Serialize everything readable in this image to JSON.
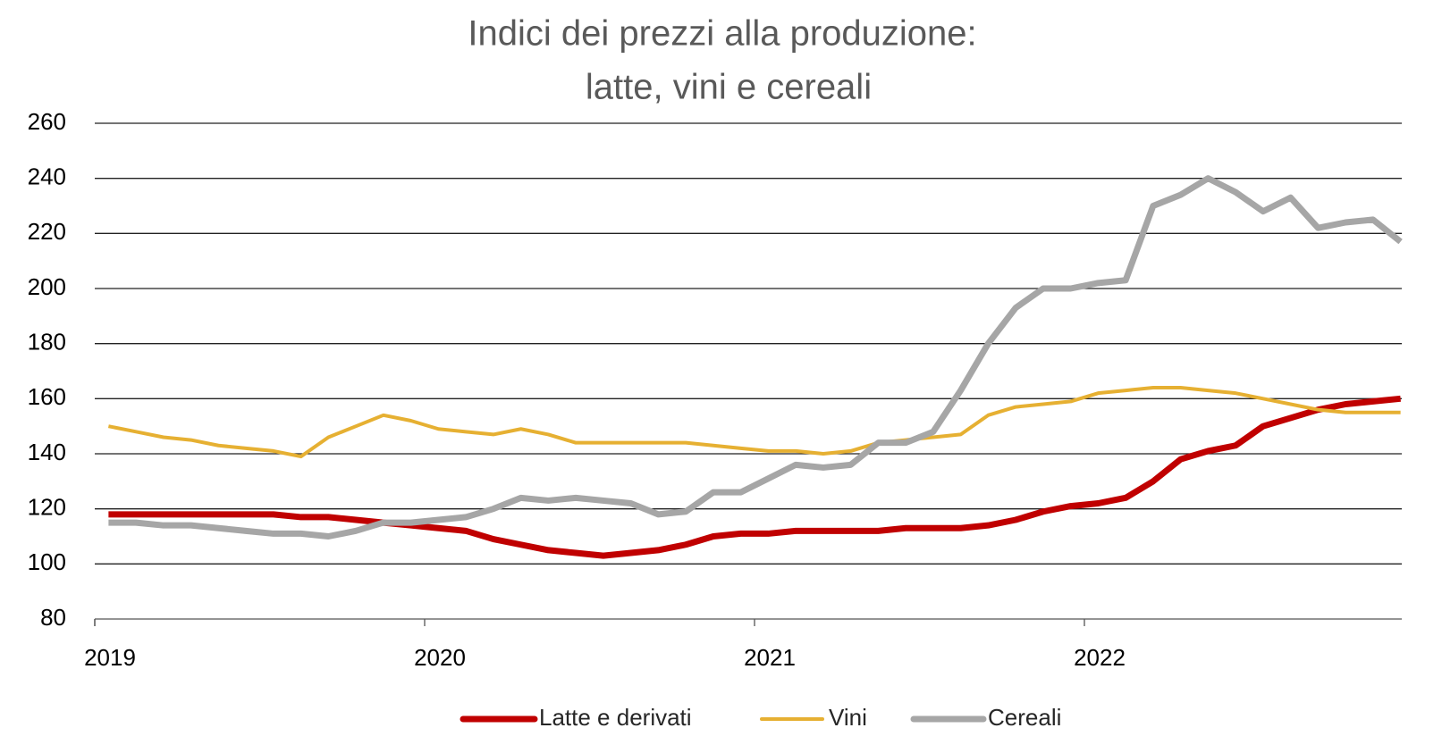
{
  "chart_data": {
    "type": "line",
    "title": [
      "Indici dei prezzi alla produzione:",
      "latte, vini e cereali"
    ],
    "categories": [
      "2019",
      null,
      null,
      null,
      null,
      null,
      null,
      null,
      null,
      null,
      null,
      null,
      "2020",
      null,
      null,
      null,
      null,
      null,
      null,
      null,
      null,
      null,
      null,
      null,
      "2021",
      null,
      null,
      null,
      null,
      null,
      null,
      null,
      null,
      null,
      null,
      null,
      "2022",
      null,
      null,
      null,
      null,
      null,
      null,
      null,
      null,
      null,
      null,
      null
    ],
    "series": [
      {
        "name": "Latte e derivati",
        "color": "#c00000",
        "values": [
          118,
          118,
          118,
          118,
          118,
          118,
          118,
          117,
          117,
          116,
          115,
          114,
          113,
          112,
          109,
          107,
          105,
          104,
          103,
          104,
          105,
          107,
          110,
          111,
          111,
          112,
          112,
          112,
          112,
          113,
          113,
          113,
          114,
          116,
          119,
          121,
          122,
          124,
          130,
          138,
          141,
          143,
          150,
          153,
          156,
          158,
          159,
          160
        ]
      },
      {
        "name": "Vini",
        "color": "#e6b032",
        "values": [
          150,
          148,
          146,
          145,
          143,
          142,
          141,
          139,
          146,
          150,
          154,
          152,
          149,
          148,
          147,
          149,
          147,
          144,
          144,
          144,
          144,
          144,
          143,
          142,
          141,
          141,
          140,
          141,
          144,
          145,
          146,
          147,
          154,
          157,
          158,
          159,
          162,
          163,
          164,
          164,
          163,
          162,
          160,
          158,
          156,
          155,
          155,
          155
        ]
      },
      {
        "name": "Cereali",
        "color": "#a6a6a6",
        "values": [
          115,
          115,
          114,
          114,
          113,
          112,
          111,
          111,
          110,
          112,
          115,
          115,
          116,
          117,
          120,
          124,
          123,
          124,
          123,
          122,
          118,
          119,
          126,
          126,
          131,
          136,
          135,
          136,
          144,
          144,
          148,
          163,
          180,
          193,
          200,
          200,
          202,
          203,
          230,
          234,
          240,
          235,
          228,
          233,
          222,
          224,
          225,
          217
        ]
      }
    ],
    "ylim": [
      80,
      260
    ],
    "yticks": [
      80,
      100,
      120,
      140,
      160,
      180,
      200,
      220,
      240,
      260
    ],
    "grid": true,
    "legend": "bottom"
  }
}
